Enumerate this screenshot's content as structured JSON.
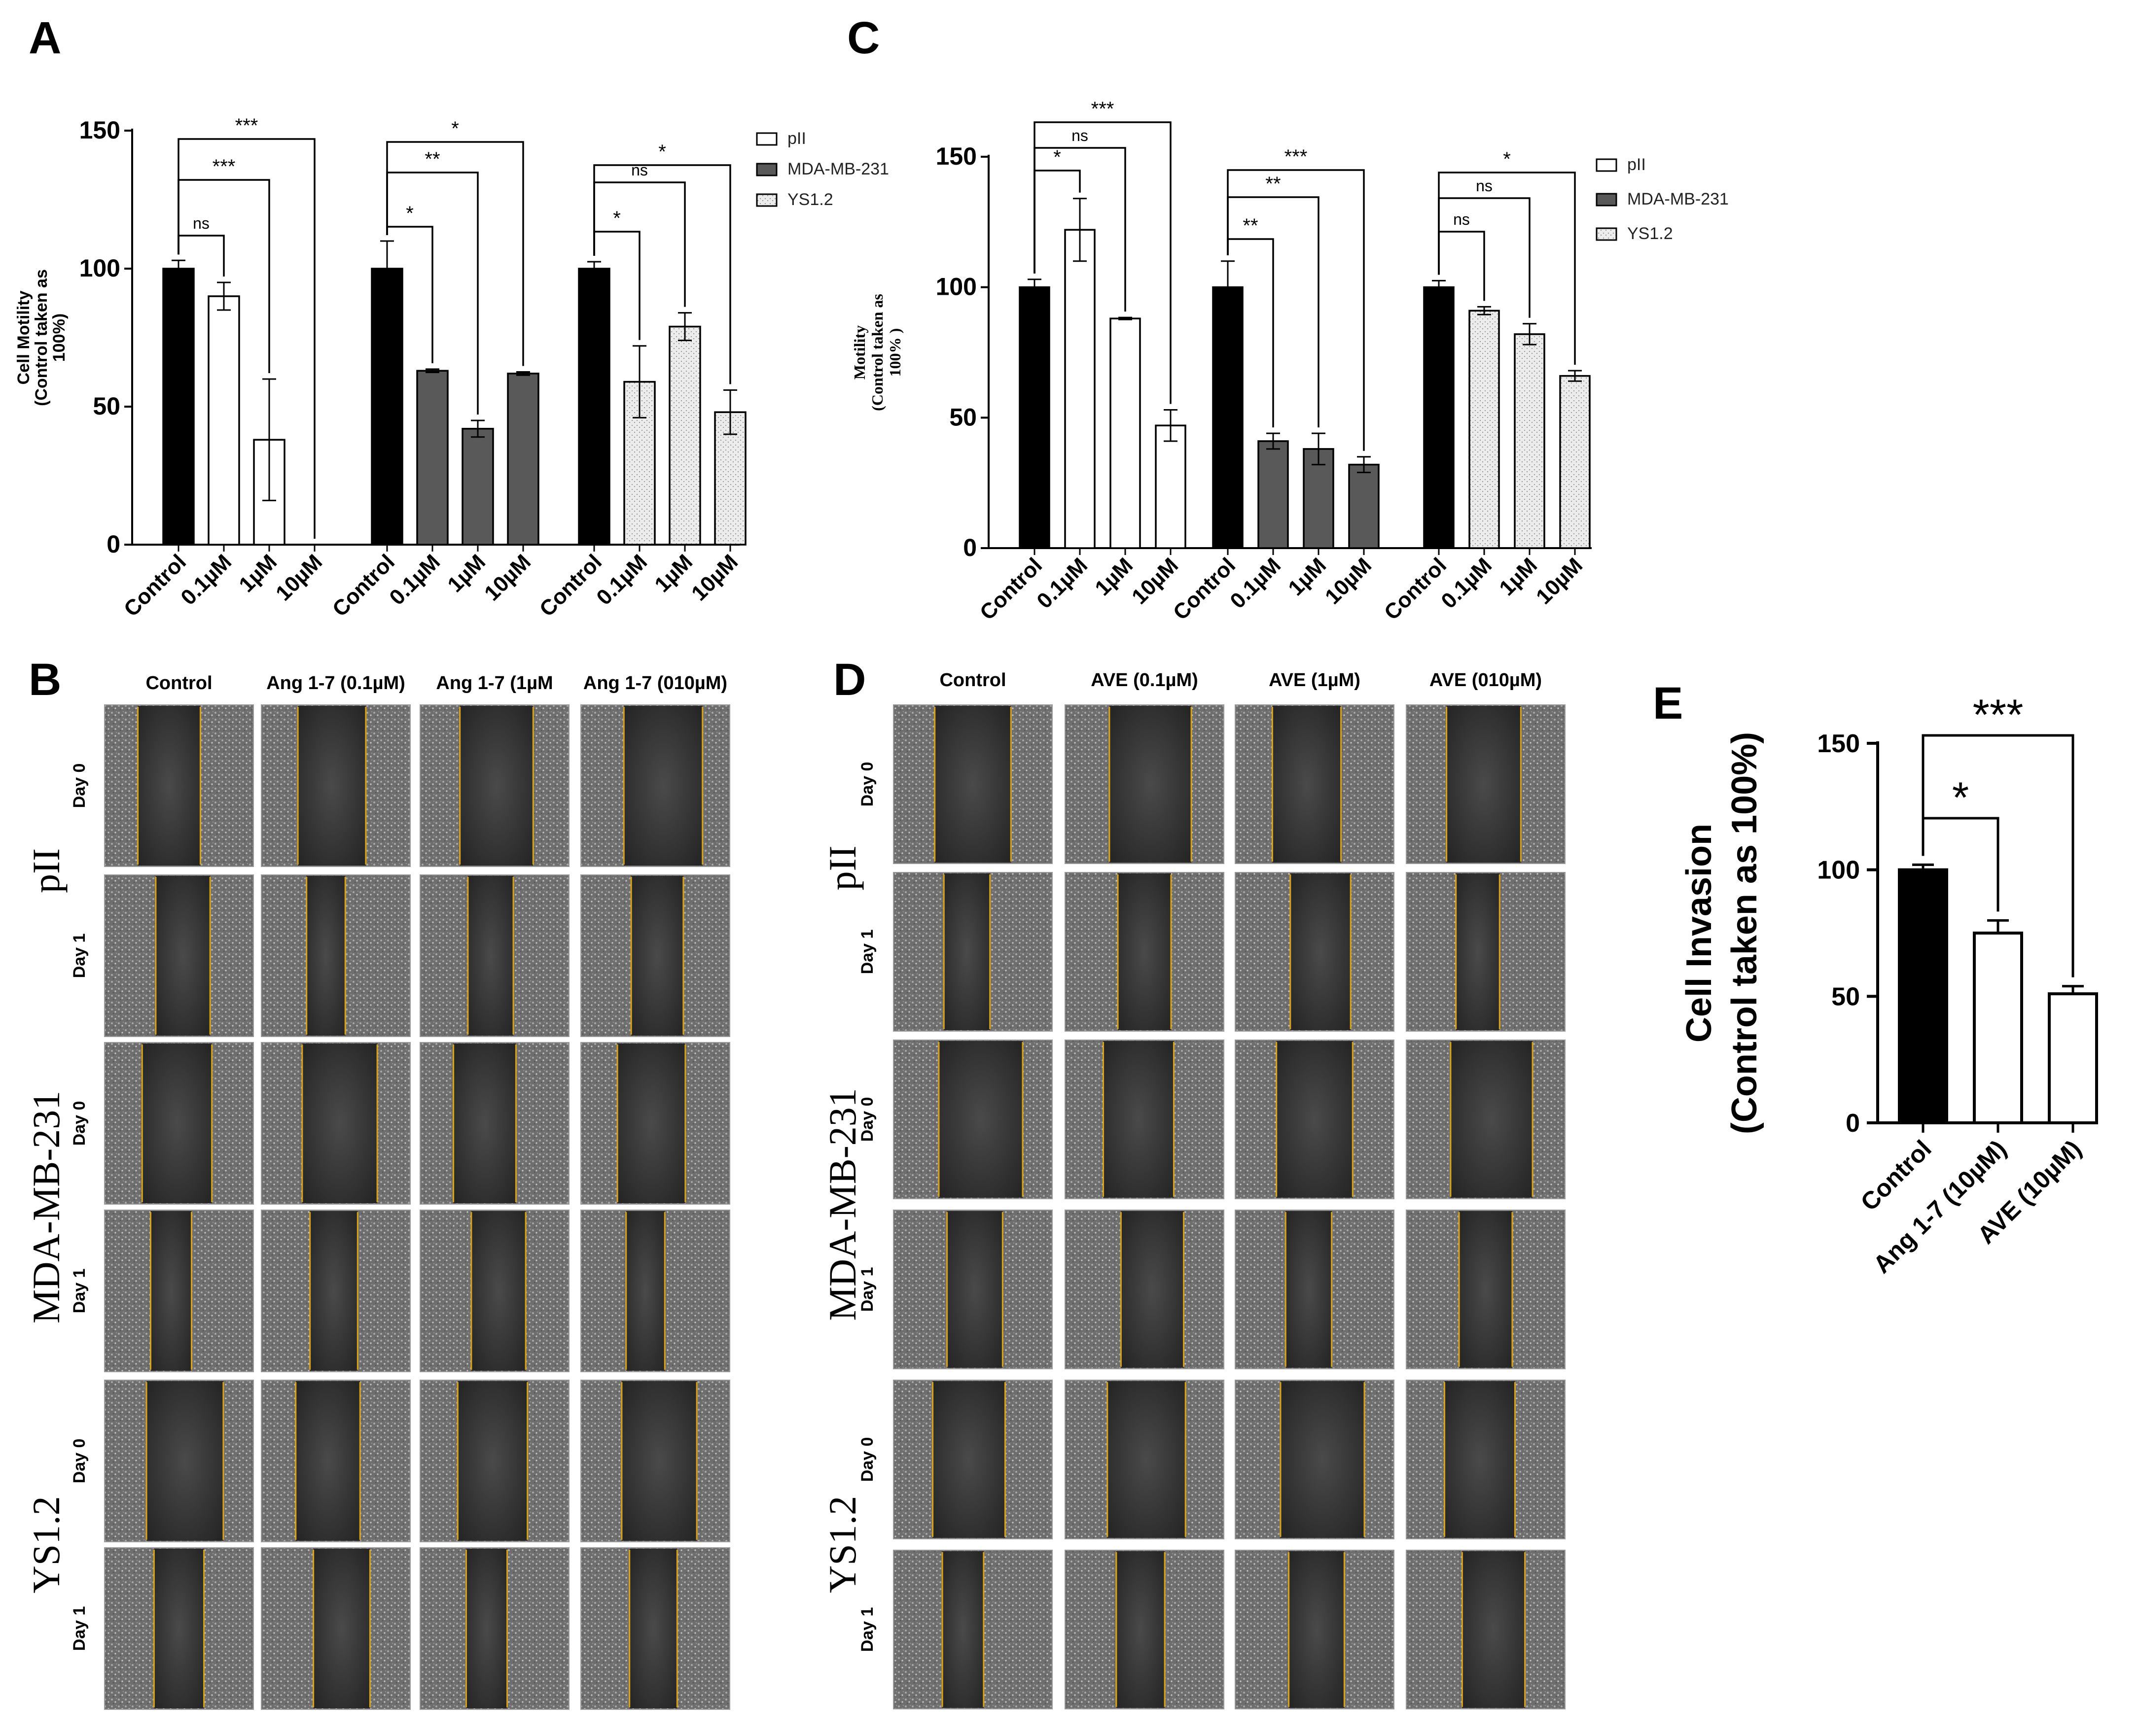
{
  "panel_labels": {
    "A": "A",
    "B": "B",
    "C": "C",
    "D": "D",
    "E": "E"
  },
  "colors": {
    "control_fill": "#000000",
    "pII_fill": "#ffffff",
    "mda_fill": "#595959",
    "ys_fill": "#e8e8e8",
    "annotation_line": "#000000",
    "wound_edge": "#d9a21b",
    "micrograph_dark": "#2b2b2b",
    "micrograph_light": "#8a8a8a"
  },
  "chart_data": [
    {
      "id": "A",
      "type": "bar",
      "title": "",
      "ylabel": "Cell Motility (Control taken as 100%)",
      "ylabel_lines": [
        "Cell Motility",
        "(Control taken as",
        "100%)"
      ],
      "ylim": [
        0,
        150
      ],
      "yticks": [
        0,
        50,
        100,
        150
      ],
      "categories": [
        "Control",
        "0.1µM",
        "1µM",
        "10µM"
      ],
      "legend": [
        "pII",
        "MDA-MB-231",
        "YS1.2"
      ],
      "legend_position": "top-right",
      "series": [
        {
          "name": "pII",
          "values": [
            100,
            90,
            38,
            0
          ],
          "errors": [
            3,
            5,
            22,
            0
          ]
        },
        {
          "name": "MDA-MB-231",
          "values": [
            100,
            63,
            42,
            62
          ],
          "errors": [
            10,
            0.6,
            3,
            0.6
          ]
        },
        {
          "name": "YS1.2",
          "values": [
            100,
            59,
            79,
            48
          ],
          "errors": [
            2.5,
            13,
            5,
            8
          ]
        }
      ],
      "annotations": [
        {
          "series": 0,
          "target": 1,
          "label": "ns"
        },
        {
          "series": 0,
          "target": 2,
          "label": "***"
        },
        {
          "series": 0,
          "target": 3,
          "label": "***"
        },
        {
          "series": 1,
          "target": 1,
          "label": "*"
        },
        {
          "series": 1,
          "target": 2,
          "label": "**"
        },
        {
          "series": 1,
          "target": 3,
          "label": "*"
        },
        {
          "series": 2,
          "target": 1,
          "label": "*"
        },
        {
          "series": 2,
          "target": 2,
          "label": "ns"
        },
        {
          "series": 2,
          "target": 3,
          "label": "*"
        }
      ]
    },
    {
      "id": "C",
      "type": "bar",
      "title": "",
      "ylabel": "Motility (Control taken as 100%)",
      "ylabel_lines": [
        "Motility",
        "(Control taken as",
        "100% )"
      ],
      "ylim": [
        0,
        150
      ],
      "yticks": [
        0,
        50,
        100,
        150
      ],
      "categories": [
        "Control",
        "0.1µM",
        "1µM",
        "10µM"
      ],
      "legend": [
        "pII",
        "MDA-MB-231",
        "YS1.2"
      ],
      "legend_position": "top-right",
      "series": [
        {
          "name": "pII",
          "values": [
            100,
            122,
            88,
            47
          ],
          "errors": [
            3,
            12,
            0.4,
            6
          ]
        },
        {
          "name": "MDA-MB-231",
          "values": [
            100,
            41,
            38,
            32
          ],
          "errors": [
            10,
            3,
            6,
            3
          ]
        },
        {
          "name": "YS1.2",
          "values": [
            100,
            91,
            82,
            66
          ],
          "errors": [
            2.5,
            1.5,
            4,
            2
          ]
        }
      ],
      "annotations": [
        {
          "series": 0,
          "target": 1,
          "label": "*"
        },
        {
          "series": 0,
          "target": 2,
          "label": "ns"
        },
        {
          "series": 0,
          "target": 3,
          "label": "***"
        },
        {
          "series": 1,
          "target": 1,
          "label": "**"
        },
        {
          "series": 1,
          "target": 2,
          "label": "**"
        },
        {
          "series": 1,
          "target": 3,
          "label": "***"
        },
        {
          "series": 2,
          "target": 1,
          "label": "ns"
        },
        {
          "series": 2,
          "target": 2,
          "label": "ns"
        },
        {
          "series": 2,
          "target": 3,
          "label": "*"
        }
      ]
    },
    {
      "id": "E",
      "type": "bar",
      "title": "",
      "ylabel": "Cell Invasion (Control taken as 100%)",
      "ylabel_lines": [
        "Cell Invasion",
        "(Control taken as 100%)"
      ],
      "ylim": [
        0,
        150
      ],
      "yticks": [
        0,
        50,
        100,
        150
      ],
      "categories": [
        "Control",
        "Ang 1-7 (10µM)",
        "AVE (10µM)"
      ],
      "values": [
        100,
        75,
        51
      ],
      "errors": [
        2,
        5,
        3
      ],
      "annotations": [
        {
          "target": 1,
          "label": "*"
        },
        {
          "target": 2,
          "label": "***"
        }
      ]
    }
  ],
  "wound_panels": [
    {
      "id": "B",
      "headers": [
        "Control",
        "Ang 1-7 (0.1µM)",
        "Ang 1-7  (1µM",
        "Ang 1-7 (010µM)"
      ],
      "cell_lines": [
        "pII",
        "MDA-MB-231",
        "YS1.2"
      ],
      "days": [
        "Day 0",
        "Day 1"
      ]
    },
    {
      "id": "D",
      "headers": [
        "Control",
        "AVE (0.1µM)",
        "AVE (1µM)",
        "AVE (010µM)"
      ],
      "cell_lines": [
        "pII",
        "MDA-MB-231",
        "YS1.2"
      ],
      "days": [
        "Day 0",
        "Day 1"
      ]
    }
  ]
}
